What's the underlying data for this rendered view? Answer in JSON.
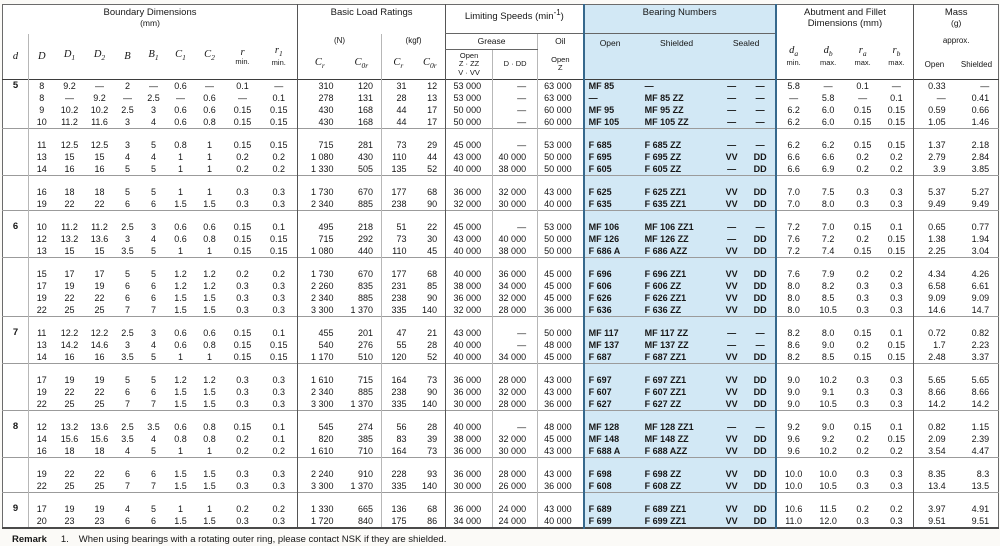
{
  "colors": {
    "band": "#d2e8f5",
    "band_edge": "#36688c",
    "paper": "#ffffff"
  },
  "header": {
    "boundary": {
      "title1": "Boundary Dimensions",
      "title2": "(mm)",
      "cols": [
        {
          "l": "d",
          "n": ""
        },
        {
          "l": "D",
          "n": ""
        },
        {
          "l": "D<sub>1</sub>",
          "n": ""
        },
        {
          "l": "D<sub>2</sub>",
          "n": ""
        },
        {
          "l": "B",
          "n": ""
        },
        {
          "l": "B<sub>1</sub>",
          "n": ""
        },
        {
          "l": "C<sub>1</sub>",
          "n": ""
        },
        {
          "l": "C<sub>2</sub>",
          "n": ""
        },
        {
          "l": "r",
          "n": "min."
        },
        {
          "l": "r<sub>1</sub>",
          "n": "min."
        }
      ]
    },
    "basic": {
      "title1": "Basic Load Ratings",
      "units": [
        "(N)",
        "(kgf)"
      ],
      "cols": [
        "C<sub>r</sub>",
        "C<sub>0r</sub>",
        "C<sub>r</sub>",
        "C<sub>0r</sub>"
      ]
    },
    "limiting": {
      "title_html": "Limiting Speeds (min<sup>-1</sup>)",
      "grease": "Grease",
      "oil": "Oil",
      "cols_html": [
        "Open<br>Z · ZZ<br>V · VV",
        "D · DD",
        "Open<br>Z"
      ]
    },
    "bearing": {
      "title1": "Bearing Numbers",
      "cols": [
        "Open",
        "Shielded",
        "Sealed"
      ]
    },
    "abutment": {
      "title1": "Abutment and Fillet",
      "title2": "Dimensions (mm)",
      "cols": [
        {
          "l": "d<sub>a</sub>",
          "n": "min."
        },
        {
          "l": "d<sub>b</sub>",
          "n": "max."
        },
        {
          "l": "r<sub>a</sub>",
          "n": "max."
        },
        {
          "l": "r<sub>b</sub>",
          "n": "max."
        }
      ]
    },
    "mass": {
      "title1": "Mass",
      "title2": "(g)",
      "approx": "approx.",
      "cols": [
        "Open",
        "Shielded"
      ]
    }
  },
  "table": {
    "groups": [
      {
        "d": "5",
        "blocks": [
          [
            [
              "8",
              "9.2",
              "—",
              "2",
              "—",
              "0.6",
              "—",
              "0.1",
              "—",
              "310",
              "120",
              "31",
              "12",
              "53 000",
              "—",
              "63 000",
              "MF 85",
              "—",
              "—",
              "—",
              "5.8",
              "—",
              "0.1",
              "—",
              "0.33",
              "—"
            ],
            [
              "8",
              "—",
              "9.2",
              "—",
              "2.5",
              "—",
              "0.6",
              "—",
              "0.1",
              "278",
              "131",
              "28",
              "13",
              "53 000",
              "—",
              "63 000",
              "—",
              "MF 85 ZZ",
              "—",
              "—",
              "—",
              "5.8",
              "—",
              "0.1",
              "—",
              "0.41"
            ],
            [
              "9",
              "10.2",
              "10.2",
              "2.5",
              "3",
              "0.6",
              "0.6",
              "0.15",
              "0.15",
              "430",
              "168",
              "44",
              "17",
              "50 000",
              "—",
              "60 000",
              "MF 95",
              "MF 95 ZZ",
              "—",
              "—",
              "6.2",
              "6.0",
              "0.15",
              "0.15",
              "0.59",
              "0.66"
            ],
            [
              "10",
              "11.2",
              "11.6",
              "3",
              "4",
              "0.6",
              "0.8",
              "0.15",
              "0.15",
              "430",
              "168",
              "44",
              "17",
              "50 000",
              "—",
              "60 000",
              "MF 105",
              "MF 105 ZZ",
              "—",
              "—",
              "6.2",
              "6.0",
              "0.15",
              "0.15",
              "1.05",
              "1.46"
            ]
          ],
          [
            [
              "11",
              "12.5",
              "12.5",
              "3",
              "5",
              "0.8",
              "1",
              "0.15",
              "0.15",
              "715",
              "281",
              "73",
              "29",
              "45 000",
              "—",
              "53 000",
              "F 685",
              "F 685 ZZ",
              "—",
              "—",
              "6.2",
              "6.2",
              "0.15",
              "0.15",
              "1.37",
              "2.18"
            ],
            [
              "13",
              "15",
              "15",
              "4",
              "4",
              "1",
              "1",
              "0.2",
              "0.2",
              "1 080",
              "430",
              "110",
              "44",
              "43 000",
              "40 000",
              "50 000",
              "F 695",
              "F 695 ZZ",
              "VV",
              "DD",
              "6.6",
              "6.6",
              "0.2",
              "0.2",
              "2.79",
              "2.84"
            ],
            [
              "14",
              "16",
              "16",
              "5",
              "5",
              "1",
              "1",
              "0.2",
              "0.2",
              "1 330",
              "505",
              "135",
              "52",
              "40 000",
              "38 000",
              "50 000",
              "F 605",
              "F 605 ZZ",
              "—",
              "DD",
              "6.6",
              "6.9",
              "0.2",
              "0.2",
              "3.9",
              "3.85"
            ]
          ],
          [
            [
              "16",
              "18",
              "18",
              "5",
              "5",
              "1",
              "1",
              "0.3",
              "0.3",
              "1 730",
              "670",
              "177",
              "68",
              "36 000",
              "32 000",
              "43 000",
              "F 625",
              "F 625 ZZ1",
              "VV",
              "DD",
              "7.0",
              "7.5",
              "0.3",
              "0.3",
              "5.37",
              "5.27"
            ],
            [
              "19",
              "22",
              "22",
              "6",
              "6",
              "1.5",
              "1.5",
              "0.3",
              "0.3",
              "2 340",
              "885",
              "238",
              "90",
              "32 000",
              "30 000",
              "40 000",
              "F 635",
              "F 635 ZZ1",
              "VV",
              "DD",
              "7.0",
              "8.0",
              "0.3",
              "0.3",
              "9.49",
              "9.49"
            ]
          ]
        ]
      },
      {
        "d": "6",
        "blocks": [
          [
            [
              "10",
              "11.2",
              "11.2",
              "2.5",
              "3",
              "0.6",
              "0.6",
              "0.15",
              "0.1",
              "495",
              "218",
              "51",
              "22",
              "45 000",
              "—",
              "53 000",
              "MF 106",
              "MF 106 ZZ1",
              "—",
              "—",
              "7.2",
              "7.0",
              "0.15",
              "0.1",
              "0.65",
              "0.77"
            ],
            [
              "12",
              "13.2",
              "13.6",
              "3",
              "4",
              "0.6",
              "0.8",
              "0.15",
              "0.15",
              "715",
              "292",
              "73",
              "30",
              "43 000",
              "40 000",
              "50 000",
              "MF 126",
              "MF 126 ZZ",
              "—",
              "DD",
              "7.6",
              "7.2",
              "0.2",
              "0.15",
              "1.38",
              "1.94"
            ],
            [
              "13",
              "15",
              "15",
              "3.5",
              "5",
              "1",
              "1",
              "0.15",
              "0.15",
              "1 080",
              "440",
              "110",
              "45",
              "40 000",
              "38 000",
              "50 000",
              "F 686 A",
              "F 686 AZZ",
              "VV",
              "DD",
              "7.2",
              "7.4",
              "0.15",
              "0.15",
              "2.25",
              "3.04"
            ]
          ],
          [
            [
              "15",
              "17",
              "17",
              "5",
              "5",
              "1.2",
              "1.2",
              "0.2",
              "0.2",
              "1 730",
              "670",
              "177",
              "68",
              "40 000",
              "36 000",
              "45 000",
              "F 696",
              "F 696 ZZ1",
              "VV",
              "DD",
              "7.6",
              "7.9",
              "0.2",
              "0.2",
              "4.34",
              "4.26"
            ],
            [
              "17",
              "19",
              "19",
              "6",
              "6",
              "1.2",
              "1.2",
              "0.3",
              "0.3",
              "2 260",
              "835",
              "231",
              "85",
              "38 000",
              "34 000",
              "45 000",
              "F 606",
              "F 606 ZZ",
              "VV",
              "DD",
              "8.0",
              "8.2",
              "0.3",
              "0.3",
              "6.58",
              "6.61"
            ],
            [
              "19",
              "22",
              "22",
              "6",
              "6",
              "1.5",
              "1.5",
              "0.3",
              "0.3",
              "2 340",
              "885",
              "238",
              "90",
              "36 000",
              "32 000",
              "45 000",
              "F 626",
              "F 626 ZZ1",
              "VV",
              "DD",
              "8.0",
              "8.5",
              "0.3",
              "0.3",
              "9.09",
              "9.09"
            ],
            [
              "22",
              "25",
              "25",
              "7",
              "7",
              "1.5",
              "1.5",
              "0.3",
              "0.3",
              "3 300",
              "1 370",
              "335",
              "140",
              "32 000",
              "28 000",
              "36 000",
              "F 636",
              "F 636 ZZ",
              "VV",
              "DD",
              "8.0",
              "10.5",
              "0.3",
              "0.3",
              "14.6",
              "14.7"
            ]
          ]
        ]
      },
      {
        "d": "7",
        "blocks": [
          [
            [
              "11",
              "12.2",
              "12.2",
              "2.5",
              "3",
              "0.6",
              "0.6",
              "0.15",
              "0.1",
              "455",
              "201",
              "47",
              "21",
              "43 000",
              "—",
              "50 000",
              "MF 117",
              "MF 117 ZZ",
              "—",
              "—",
              "8.2",
              "8.0",
              "0.15",
              "0.1",
              "0.72",
              "0.82"
            ],
            [
              "13",
              "14.2",
              "14.6",
              "3",
              "4",
              "0.6",
              "0.8",
              "0.15",
              "0.15",
              "540",
              "276",
              "55",
              "28",
              "40 000",
              "—",
              "48 000",
              "MF 137",
              "MF 137 ZZ",
              "—",
              "—",
              "8.6",
              "9.0",
              "0.2",
              "0.15",
              "1.7",
              "2.23"
            ],
            [
              "14",
              "16",
              "16",
              "3.5",
              "5",
              "1",
              "1",
              "0.15",
              "0.15",
              "1 170",
              "510",
              "120",
              "52",
              "40 000",
              "34 000",
              "45 000",
              "F 687",
              "F 687 ZZ1",
              "VV",
              "DD",
              "8.2",
              "8.5",
              "0.15",
              "0.15",
              "2.48",
              "3.37"
            ]
          ],
          [
            [
              "17",
              "19",
              "19",
              "5",
              "5",
              "1.2",
              "1.2",
              "0.3",
              "0.3",
              "1 610",
              "715",
              "164",
              "73",
              "36 000",
              "28 000",
              "43 000",
              "F 697",
              "F 697 ZZ1",
              "VV",
              "DD",
              "9.0",
              "10.2",
              "0.3",
              "0.3",
              "5.65",
              "5.65"
            ],
            [
              "19",
              "22",
              "22",
              "6",
              "6",
              "1.5",
              "1.5",
              "0.3",
              "0.3",
              "2 340",
              "885",
              "238",
              "90",
              "36 000",
              "32 000",
              "43 000",
              "F 607",
              "F 607 ZZ1",
              "VV",
              "DD",
              "9.0",
              "9.1",
              "0.3",
              "0.3",
              "8.66",
              "8.66"
            ],
            [
              "22",
              "25",
              "25",
              "7",
              "7",
              "1.5",
              "1.5",
              "0.3",
              "0.3",
              "3 300",
              "1 370",
              "335",
              "140",
              "30 000",
              "28 000",
              "36 000",
              "F 627",
              "F 627 ZZ",
              "VV",
              "DD",
              "9.0",
              "10.5",
              "0.3",
              "0.3",
              "14.2",
              "14.2"
            ]
          ]
        ]
      },
      {
        "d": "8",
        "blocks": [
          [
            [
              "12",
              "13.2",
              "13.6",
              "2.5",
              "3.5",
              "0.6",
              "0.8",
              "0.15",
              "0.1",
              "545",
              "274",
              "56",
              "28",
              "40 000",
              "—",
              "48 000",
              "MF 128",
              "MF 128 ZZ1",
              "—",
              "—",
              "9.2",
              "9.0",
              "0.15",
              "0.1",
              "0.82",
              "1.15"
            ],
            [
              "14",
              "15.6",
              "15.6",
              "3.5",
              "4",
              "0.8",
              "0.8",
              "0.2",
              "0.1",
              "820",
              "385",
              "83",
              "39",
              "38 000",
              "32 000",
              "45 000",
              "MF 148",
              "MF 148 ZZ",
              "VV",
              "DD",
              "9.6",
              "9.2",
              "0.2",
              "0.15",
              "2.09",
              "2.39"
            ],
            [
              "16",
              "18",
              "18",
              "4",
              "5",
              "1",
              "1",
              "0.2",
              "0.2",
              "1 610",
              "710",
              "164",
              "73",
              "36 000",
              "30 000",
              "43 000",
              "F 688 A",
              "F 688 AZZ",
              "VV",
              "DD",
              "9.6",
              "10.2",
              "0.2",
              "0.2",
              "3.54",
              "4.47"
            ]
          ],
          [
            [
              "19",
              "22",
              "22",
              "6",
              "6",
              "1.5",
              "1.5",
              "0.3",
              "0.3",
              "2 240",
              "910",
              "228",
              "93",
              "36 000",
              "28 000",
              "43 000",
              "F 698",
              "F 698 ZZ",
              "VV",
              "DD",
              "10.0",
              "10.0",
              "0.3",
              "0.3",
              "8.35",
              "8.3"
            ],
            [
              "22",
              "25",
              "25",
              "7",
              "7",
              "1.5",
              "1.5",
              "0.3",
              "0.3",
              "3 300",
              "1 370",
              "335",
              "140",
              "30 000",
              "26 000",
              "36 000",
              "F 608",
              "F 608 ZZ",
              "VV",
              "DD",
              "10.0",
              "10.5",
              "0.3",
              "0.3",
              "13.4",
              "13.5"
            ]
          ]
        ]
      },
      {
        "d": "9",
        "blocks": [
          [
            [
              "17",
              "19",
              "19",
              "4",
              "5",
              "1",
              "1",
              "0.2",
              "0.2",
              "1 330",
              "665",
              "136",
              "68",
              "36 000",
              "24 000",
              "43 000",
              "F 689",
              "F 689 ZZ1",
              "VV",
              "DD",
              "10.6",
              "11.5",
              "0.2",
              "0.2",
              "3.97",
              "4.91"
            ],
            [
              "20",
              "23",
              "23",
              "6",
              "6",
              "1.5",
              "1.5",
              "0.3",
              "0.3",
              "1 720",
              "840",
              "175",
              "86",
              "34 000",
              "24 000",
              "40 000",
              "F 699",
              "F 699 ZZ1",
              "VV",
              "DD",
              "11.0",
              "12.0",
              "0.3",
              "0.3",
              "9.51",
              "9.51"
            ]
          ]
        ]
      }
    ]
  },
  "remark": {
    "label": "Remark",
    "number": "1.",
    "text": "When using bearings with a rotating outer ring, please contact NSK if they are shielded."
  }
}
